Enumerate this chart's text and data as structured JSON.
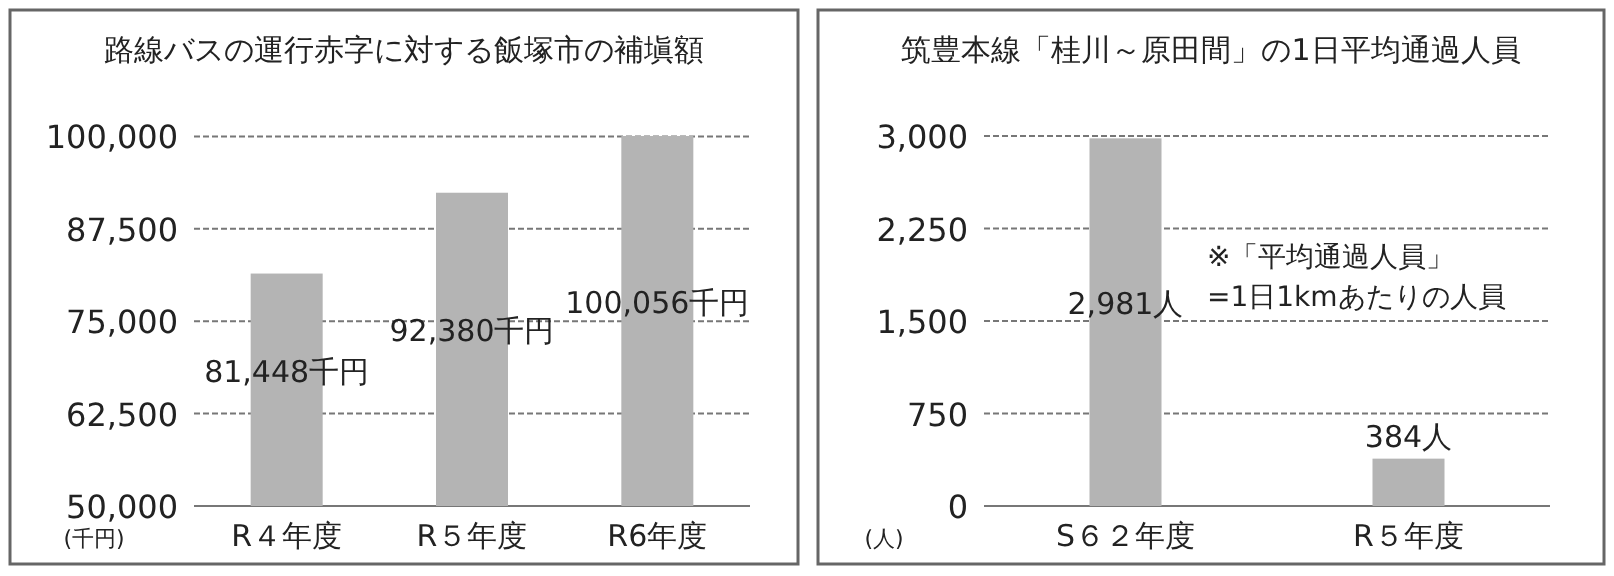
{
  "chart_data": [
    {
      "type": "bar",
      "title": "路線バスの運行赤字に対する飯塚市の補塡額",
      "ylabel": "(千円)",
      "categories": [
        "R４年度",
        "R５年度",
        "R6年度"
      ],
      "values": [
        81448,
        92380,
        100056
      ],
      "value_labels": [
        "81,448千円",
        "92,380千円",
        "100,056千円"
      ],
      "color": "#b4b4b4",
      "ylim": [
        50000,
        100056
      ],
      "yticks": [
        {
          "value": 50000,
          "label": "50,000"
        },
        {
          "value": 62500,
          "label": "62,500"
        },
        {
          "value": 75000,
          "label": "75,000"
        },
        {
          "value": 87500,
          "label": "87,500"
        },
        {
          "value": 100000,
          "label": "100,000"
        }
      ],
      "grid": "y"
    },
    {
      "type": "bar",
      "title": "筑豊本線「桂川～原田間」の1日平均通過人員",
      "ylabel": "(人)",
      "categories": [
        "S６２年度",
        "R５年度"
      ],
      "values": [
        2981,
        384
      ],
      "value_labels": [
        "2,981人",
        "384人"
      ],
      "color": "#b4b4b4",
      "ylim": [
        0,
        3000
      ],
      "yticks": [
        0,
        {
          "value": 750,
          "label": "750"
        },
        {
          "value": 1500,
          "label": "1,500"
        },
        {
          "value": 2250,
          "label": "2,250"
        },
        {
          "value": 3000,
          "label": "3,000"
        }
      ],
      "grid": "y",
      "annotations": [
        "※「平均通過人員」\n=1日1kmあたりの人員"
      ]
    }
  ]
}
